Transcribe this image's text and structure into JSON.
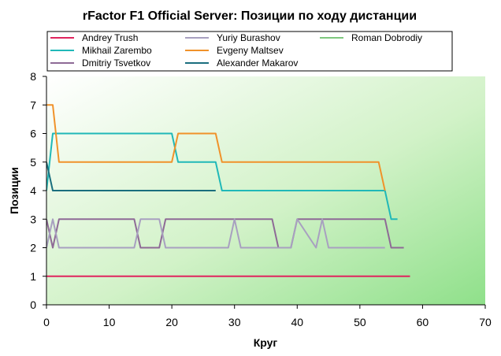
{
  "chart_data": {
    "type": "line",
    "title": "rFactor F1 Official Server: Позиции по ходу дистанции",
    "xlabel": "Круг",
    "ylabel": "Позиции",
    "xlim": [
      0,
      70
    ],
    "ylim": [
      0,
      8
    ],
    "xticks": [
      0,
      10,
      20,
      30,
      40,
      50,
      60,
      70
    ],
    "yticks": [
      0,
      1,
      2,
      3,
      4,
      5,
      6,
      7,
      8
    ],
    "grid": false,
    "legend_position": "top",
    "series": [
      {
        "name": "Andrey Trush",
        "color": "#e0245e",
        "x": [
          0,
          58
        ],
        "y": [
          1,
          1
        ]
      },
      {
        "name": "Mikhail Zarembo",
        "color": "#20b8b8",
        "x": [
          0,
          1,
          20,
          21,
          27,
          28,
          54,
          55,
          56
        ],
        "y": [
          4,
          6,
          6,
          5,
          5,
          4,
          4,
          3,
          3
        ]
      },
      {
        "name": "Dmitriy Tsvetkov",
        "color": "#8e6a96",
        "x": [
          0,
          1,
          2,
          14,
          15,
          18,
          19,
          36,
          37,
          39,
          40,
          54,
          55,
          57
        ],
        "y": [
          3,
          2,
          3,
          3,
          2,
          2,
          3,
          3,
          2,
          2,
          3,
          3,
          2,
          2
        ]
      },
      {
        "name": "Yuriy Burashov",
        "color": "#a8a0c0",
        "x": [
          0,
          1,
          2,
          14,
          15,
          18,
          19,
          29,
          30,
          31,
          39,
          40,
          43,
          44,
          45,
          54
        ],
        "y": [
          2,
          3,
          2,
          2,
          3,
          3,
          2,
          2,
          3,
          2,
          2,
          3,
          2,
          3,
          2,
          2
        ]
      },
      {
        "name": "Evgeny Maltsev",
        "color": "#f0922a",
        "x": [
          0,
          1,
          2,
          20,
          21,
          27,
          28,
          53,
          54
        ],
        "y": [
          7,
          7,
          5,
          5,
          6,
          6,
          5,
          5,
          4
        ]
      },
      {
        "name": "Alexander Makarov",
        "color": "#1a6e7e",
        "x": [
          0,
          1,
          27
        ],
        "y": [
          5,
          4,
          4
        ]
      },
      {
        "name": "Roman Dobrodiy",
        "color": "#7ec87e",
        "x": [],
        "y": []
      }
    ]
  }
}
